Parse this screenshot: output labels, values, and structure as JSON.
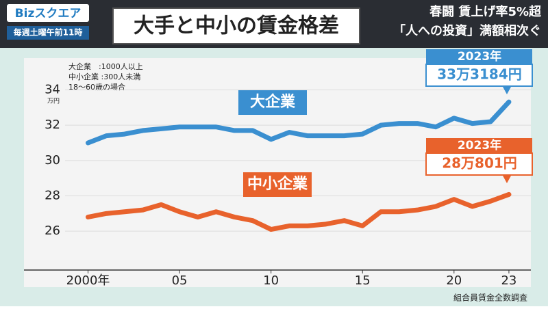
{
  "header": {
    "logo": "Bizスクエア",
    "schedule": "毎週土曜午前11時",
    "title": "大手と中小の賃金格差",
    "headline": [
      "春闘 賃上げ率5%超",
      "「人への投資」満額相次ぐ"
    ]
  },
  "chart_data": {
    "type": "line",
    "notes": [
      "大企業　:1000人以上",
      "中小企業 :300人未満",
      "18～60歳の場合"
    ],
    "y_unit": "万円",
    "source": "組合員賃金全数調査",
    "x": [
      2000,
      2001,
      2002,
      2003,
      2004,
      2005,
      2006,
      2007,
      2008,
      2009,
      2010,
      2011,
      2012,
      2013,
      2014,
      2015,
      2016,
      2017,
      2018,
      2019,
      2020,
      2021,
      2022,
      2023
    ],
    "series": [
      {
        "name": "大企業",
        "color": "#3a8fd0",
        "values": [
          31.0,
          31.4,
          31.5,
          31.7,
          31.8,
          31.9,
          31.9,
          31.9,
          31.7,
          31.7,
          31.2,
          31.6,
          31.4,
          31.4,
          31.4,
          31.5,
          32.0,
          32.1,
          32.1,
          31.9,
          32.4,
          32.1,
          32.2,
          33.3184
        ]
      },
      {
        "name": "中小企業",
        "color": "#e8622c",
        "values": [
          26.8,
          27.0,
          27.1,
          27.2,
          27.5,
          27.1,
          26.8,
          27.1,
          26.8,
          26.6,
          26.1,
          26.3,
          26.3,
          26.4,
          26.6,
          26.3,
          27.1,
          27.1,
          27.2,
          27.4,
          27.8,
          27.4,
          27.7,
          28.0801
        ]
      }
    ],
    "annotations": [
      {
        "title": "2023年",
        "text": "33万3184円"
      },
      {
        "title": "2023年",
        "text": "28万801円"
      }
    ],
    "xlim": [
      1996.5,
      2024.2
    ],
    "xticks": [
      {
        "value": 2000,
        "label": "2000年"
      },
      {
        "value": 2005,
        "label": "05"
      },
      {
        "value": 2010,
        "label": "10"
      },
      {
        "value": 2015,
        "label": "15"
      },
      {
        "value": 2020,
        "label": "20"
      },
      {
        "value": 2023,
        "label": "23"
      }
    ],
    "ylim": [
      23.8,
      35.8
    ],
    "yticks": [
      26,
      28,
      30,
      32,
      34
    ],
    "grid": true
  }
}
